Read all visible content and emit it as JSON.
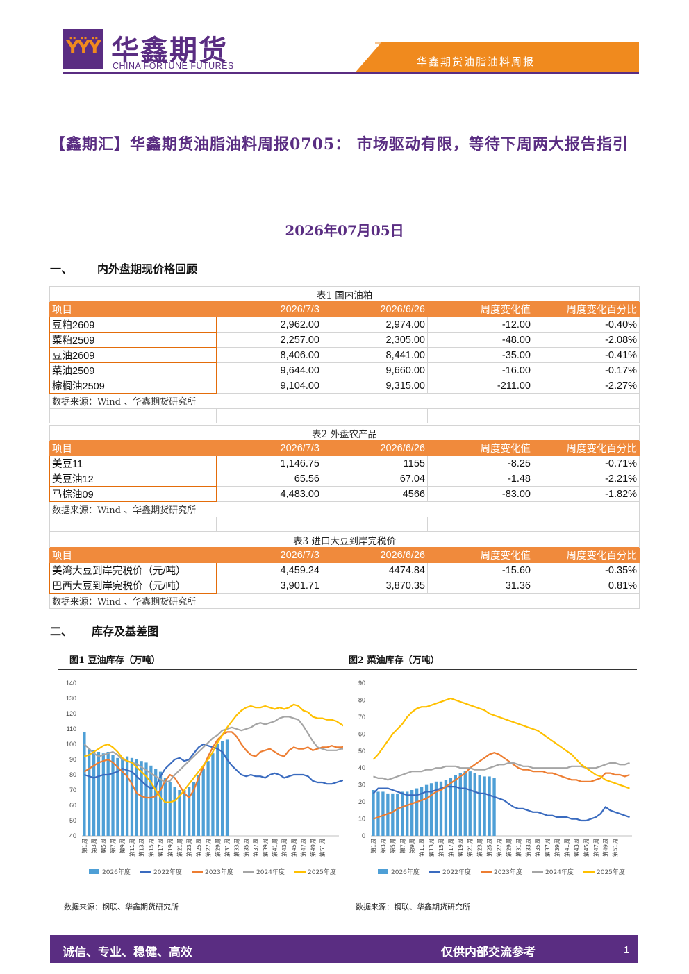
{
  "header": {
    "logo_cn": "华鑫期货",
    "logo_en": "CHINA FORTUNE FUTURES",
    "report_name": "华鑫期货油脂油料周报"
  },
  "title": "【鑫期汇】华鑫期货油脂油料周报0705： 市场驱动有限，等待下周两大报告指引",
  "date": "2026年07月05日",
  "section1": {
    "num": "一、",
    "title": "内外盘期现价格回顾"
  },
  "section2": {
    "num": "二、",
    "title": "库存及基差图"
  },
  "tables": [
    {
      "caption": "表1  国内油粕",
      "headers": [
        "项目",
        "2026/7/3",
        "2026/6/26",
        "周度变化值",
        "周度变化百分比"
      ],
      "rows": [
        [
          "豆粕2609",
          "2,962.00",
          "2,974.00",
          "-12.00",
          "-0.40%"
        ],
        [
          "菜粕2509",
          "2,257.00",
          "2,305.00",
          "-48.00",
          "-2.08%"
        ],
        [
          "豆油2609",
          "8,406.00",
          "8,441.00",
          "-35.00",
          "-0.41%"
        ],
        [
          "菜油2509",
          "9,644.00",
          "9,660.00",
          "-16.00",
          "-0.17%"
        ],
        [
          "棕榈油2509",
          "9,104.00",
          "9,315.00",
          "-211.00",
          "-2.27%"
        ]
      ],
      "source": "数据来源：Wind 、华鑫期货研究所"
    },
    {
      "caption": "表2  外盘农产品",
      "headers": [
        "项目",
        "2026/7/3",
        "2026/6/26",
        "周度变化值",
        "周度变化百分比"
      ],
      "rows": [
        [
          "美豆11",
          "1,146.75",
          "1155",
          "-8.25",
          "-0.71%"
        ],
        [
          "美豆油12",
          "65.56",
          "67.04",
          "-1.48",
          "-2.21%"
        ],
        [
          "马棕油09",
          "4,483.00",
          "4566",
          "-83.00",
          "-1.82%"
        ]
      ],
      "source": "数据来源：Wind 、华鑫期货研究所"
    },
    {
      "caption": "表3  进口大豆到岸完税价",
      "headers": [
        "项目",
        "2026/7/3",
        "2026/6/26",
        "周度变化值",
        "周度变化百分比"
      ],
      "rows": [
        [
          "美湾大豆到岸完税价（元/吨）",
          "4,459.24",
          "4474.84",
          "-15.60",
          "-0.35%"
        ],
        [
          "巴西大豆到岸完税价（元/吨）",
          "3,901.71",
          "3,870.35",
          "31.36",
          "0.81%"
        ]
      ],
      "source": "数据来源：Wind 、华鑫期货研究所"
    }
  ],
  "chart_data": [
    {
      "type": "bar+line",
      "title": "图1  豆油库存（万吨）",
      "source": "数据来源：钢联、华鑫期货研究所",
      "ylim": [
        40,
        140
      ],
      "yticks": [
        40,
        50,
        60,
        70,
        80,
        90,
        100,
        110,
        120,
        130,
        140
      ],
      "xticks": [
        "第1周",
        "第3周",
        "第5周",
        "第7周",
        "第9周",
        "第11周",
        "第13周",
        "第15周",
        "第17周",
        "第19周",
        "第21周",
        "第23周",
        "第25周",
        "第27周",
        "第29周",
        "第31周",
        "第33周",
        "第35周",
        "第37周",
        "第39周",
        "第41周",
        "第43周",
        "第45周",
        "第47周",
        "第49周",
        "第51周"
      ],
      "series": [
        {
          "name": "2026年度",
          "kind": "bar",
          "color": "#4e9fd6",
          "values": [
            108,
            97,
            96,
            95,
            94,
            95,
            93,
            91,
            91,
            92,
            91,
            90,
            89,
            88,
            86,
            84,
            82,
            78,
            75,
            72,
            70,
            70,
            72,
            75,
            80,
            84,
            89,
            94,
            100,
            102,
            103
          ]
        },
        {
          "name": "2022年度",
          "kind": "line",
          "color": "#3a6bbf",
          "values": [
            80,
            79,
            78,
            79,
            80,
            80,
            81,
            82,
            84,
            83,
            82,
            79,
            76,
            73,
            71,
            72,
            79,
            84,
            87,
            90,
            91,
            89,
            90,
            94,
            98,
            100,
            99,
            98,
            97,
            95,
            90,
            86,
            83,
            80,
            79,
            80,
            79,
            79,
            78,
            80,
            81,
            80,
            78,
            79,
            80,
            80,
            80,
            79,
            76,
            75,
            75,
            74,
            74,
            75,
            76,
            77,
            79
          ]
        },
        {
          "name": "2023年度",
          "kind": "line",
          "color": "#ed7d31",
          "values": [
            82,
            84,
            86,
            88,
            89,
            90,
            88,
            85,
            82,
            79,
            74,
            68,
            66,
            65,
            65,
            66,
            70,
            76,
            80,
            78,
            73,
            68,
            65,
            70,
            78,
            85,
            92,
            98,
            103,
            106,
            108,
            108,
            105,
            100,
            96,
            93,
            92,
            95,
            96,
            97,
            95,
            93,
            92,
            96,
            98,
            97,
            97,
            98,
            96,
            97,
            98,
            98,
            99,
            98,
            98,
            99,
            99
          ]
        },
        {
          "name": "2024年度",
          "kind": "line",
          "color": "#a5a5a5",
          "values": [
            100,
            97,
            94,
            92,
            93,
            94,
            95,
            93,
            90,
            89,
            88,
            87,
            85,
            83,
            81,
            79,
            77,
            75,
            76,
            80,
            83,
            86,
            89,
            92,
            95,
            98,
            101,
            104,
            106,
            109,
            110,
            111,
            110,
            109,
            110,
            111,
            113,
            114,
            113,
            114,
            115,
            117,
            118,
            118,
            117,
            116,
            112,
            107,
            102,
            98,
            97,
            96,
            96,
            96,
            97,
            97,
            97
          ]
        },
        {
          "name": "2025年度",
          "kind": "line",
          "color": "#ffc000",
          "values": [
            92,
            93,
            95,
            97,
            99,
            100,
            98,
            95,
            91,
            89,
            88,
            85,
            82,
            79,
            75,
            70,
            65,
            62,
            62,
            63,
            66,
            70,
            74,
            78,
            82,
            86,
            90,
            95,
            101,
            106,
            111,
            115,
            119,
            122,
            124,
            125,
            124,
            124,
            125,
            124,
            123,
            124,
            123,
            124,
            126,
            125,
            122,
            121,
            118,
            117,
            117,
            116,
            116,
            115,
            113,
            111,
            109
          ]
        }
      ]
    },
    {
      "type": "bar+line",
      "title": "图2  菜油库存（万吨）",
      "source": "数据来源：钢联、华鑫期货研究所",
      "ylim": [
        0,
        90
      ],
      "yticks": [
        0,
        10,
        20,
        30,
        40,
        50,
        60,
        70,
        80,
        90
      ],
      "xticks": [
        "第1周",
        "第3周",
        "第5周",
        "第7周",
        "第9周",
        "第11周",
        "第13周",
        "第15周",
        "第17周",
        "第19周",
        "第21周",
        "第23周",
        "第25周",
        "第27周",
        "第29周",
        "第31周",
        "第33周",
        "第35周",
        "第37周",
        "第39周",
        "第41周",
        "第43周",
        "第45周",
        "第47周",
        "第49周",
        "第51周"
      ],
      "series": [
        {
          "name": "2026年度",
          "kind": "bar",
          "color": "#4e9fd6",
          "values": [
            27,
            26,
            26,
            25,
            25,
            25,
            26,
            26,
            27,
            28,
            29,
            30,
            31,
            32,
            32,
            33,
            34,
            36,
            37,
            38,
            38,
            37,
            36,
            35,
            35,
            34
          ]
        },
        {
          "name": "2022年度",
          "kind": "line",
          "color": "#3a6bbf",
          "values": [
            25,
            28,
            28,
            28,
            27,
            26,
            25,
            24,
            24,
            24,
            25,
            26,
            26,
            27,
            28,
            29,
            29,
            29,
            28,
            28,
            27,
            26,
            25,
            25,
            24,
            23,
            22,
            21,
            19,
            17,
            16,
            16,
            15,
            14,
            14,
            13,
            12,
            12,
            11,
            11,
            11,
            10,
            10,
            9,
            9,
            10,
            11,
            13,
            17,
            15,
            14,
            13,
            12,
            11
          ]
        },
        {
          "name": "2023年度",
          "kind": "line",
          "color": "#ed7d31",
          "values": [
            10,
            11,
            12,
            13,
            14,
            16,
            17,
            18,
            19,
            20,
            21,
            22,
            24,
            26,
            27,
            29,
            31,
            33,
            35,
            37,
            40,
            42,
            44,
            46,
            48,
            49,
            48,
            46,
            44,
            42,
            40,
            39,
            39,
            38,
            38,
            38,
            37,
            37,
            36,
            35,
            34,
            33,
            33,
            32,
            32,
            32,
            33,
            34,
            37,
            37,
            36,
            36,
            35,
            36
          ]
        },
        {
          "name": "2024年度",
          "kind": "line",
          "color": "#a5a5a5",
          "values": [
            35,
            34,
            34,
            33,
            34,
            35,
            36,
            37,
            38,
            38,
            38,
            39,
            39,
            40,
            40,
            41,
            41,
            41,
            40,
            40,
            40,
            39,
            39,
            39,
            40,
            41,
            42,
            42,
            43,
            43,
            42,
            41,
            41,
            40,
            40,
            40,
            40,
            40,
            40,
            40,
            40,
            41,
            41,
            41,
            40,
            40,
            40,
            41,
            42,
            43,
            43,
            42,
            42,
            43
          ]
        },
        {
          "name": "2025年度",
          "kind": "line",
          "color": "#ffc000",
          "values": [
            45,
            48,
            52,
            56,
            60,
            63,
            66,
            70,
            73,
            75,
            76,
            76,
            77,
            78,
            79,
            80,
            81,
            80,
            79,
            78,
            77,
            76,
            75,
            74,
            72,
            71,
            70,
            69,
            68,
            67,
            66,
            65,
            64,
            63,
            62,
            60,
            58,
            56,
            54,
            52,
            50,
            48,
            45,
            42,
            40,
            38,
            36,
            35,
            33,
            32,
            31,
            30,
            29,
            28
          ]
        }
      ]
    }
  ],
  "footer": {
    "left": "诚信、专业、稳健、高效",
    "right": "仅供内部交流参考",
    "page": "1"
  },
  "colors": {
    "brand_purple": "#5a2d82",
    "accent_orange": "#f08a3c"
  }
}
